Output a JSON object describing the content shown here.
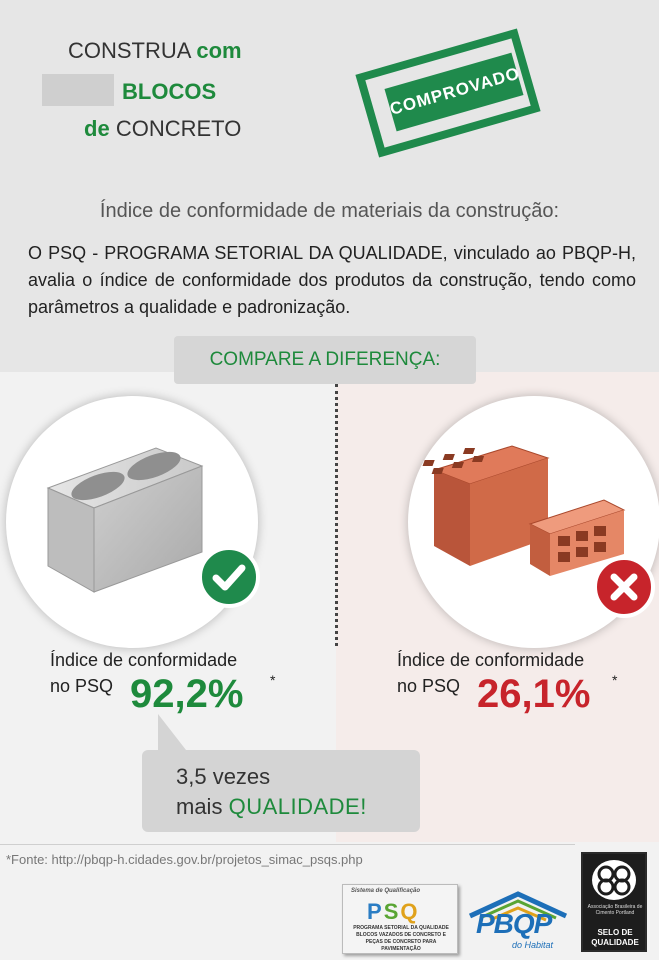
{
  "header": {
    "line1_prefix": "CONSTRUA",
    "line1_suffix": "com",
    "line2": "BLOCOS",
    "line3_prefix": "de",
    "line3_suffix": "CONCRETO",
    "stamp": "COMPROVADO"
  },
  "subtitle": "Índice de conformidade de materiais da construção:",
  "intro": "O PSQ - PROGRAMA SETORIAL DA QUALIDADE, vinculado ao PBQP-H, avalia o índice de conformidade dos produtos da construção, tendo como parâmetros a qualidade e padronização.",
  "compare_title": "COMPARE A DIFERENÇA:",
  "left": {
    "product": "concrete-block",
    "label_line1": "Índice de conformidade",
    "label_line2": "no PSQ",
    "value": "92,2%",
    "marker": "*",
    "status_icon": "check-icon",
    "color": "#1e8a3c"
  },
  "right": {
    "product": "ceramic-brick",
    "label_line1": "Índice de conformidade",
    "label_line2": "no PSQ",
    "value": "26,1%",
    "marker": "*",
    "status_icon": "x-icon",
    "color": "#c7242b"
  },
  "callout": {
    "line1": "3,5 vezes",
    "line2_prefix": "mais",
    "line2_highlight": "QUALIDADE!"
  },
  "source": "*Fonte: http://pbqp-h.cidades.gov.br/projetos_simac_psqs.php",
  "logos": {
    "psq": {
      "tagline": "Sistema de Qualificação",
      "letters": [
        "P",
        "S",
        "Q"
      ],
      "caption": "PROGRAMA SETORIAL DA QUALIDADE BLOCOS VAZADOS DE CONCRETO E PEÇAS DE CONCRETO PARA PAVIMENTAÇÃO"
    },
    "pbqp": {
      "name": "PBQP",
      "sub": "do Habitat"
    },
    "abcp": {
      "org": "Associação Brasileira de Cimento Portland",
      "seal": "SELO DE QUALIDADE"
    }
  }
}
